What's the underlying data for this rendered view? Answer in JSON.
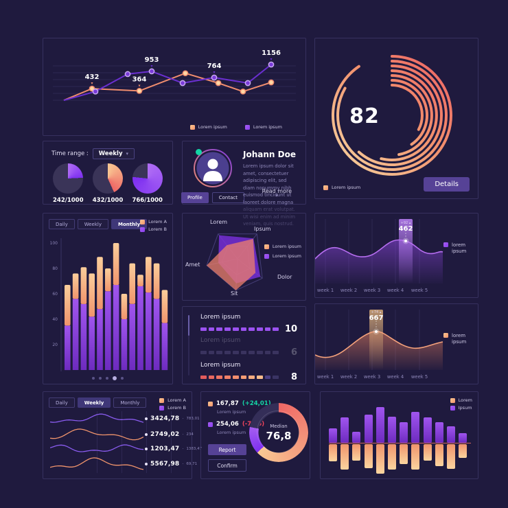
{
  "colors": {
    "background": "#1f1a3e",
    "panel_border": "#37315f",
    "grid": "#2e2853",
    "axis": "#3a3464",
    "text": "#ffffff",
    "muted": "#8d86b8",
    "soft": "#cfcae6",
    "orange": "#f4926c",
    "orange_light": "#fbc992",
    "coral": "#ee6765",
    "cream": "#f6d7a2",
    "purple": "#8a3ff0",
    "purple_light": "#a55ef0",
    "purple_deep": "#6d2bbf",
    "accent_button": "#564296",
    "outline_button": "#4a4380",
    "tab_active": "#3f3778",
    "track": "#342e58",
    "green": "#14d5a5",
    "red": "#f0435c"
  },
  "icons": {
    "chevron_down": "▾",
    "caret_up": "▴",
    "caret_down": "▾",
    "bullet": "•",
    "separator": "·"
  },
  "panels": {
    "trend": {
      "legend": [
        {
          "label": "Lorem ipsum",
          "swatch": "orange"
        },
        {
          "label": "Lorem ipsum",
          "swatch": "purple"
        }
      ]
    },
    "gauge": {
      "value": "82",
      "legend": "Lorem ipsum",
      "details": "Details"
    },
    "timerange": {
      "label": "Time range :",
      "selected": "Weekly"
    },
    "profile": {
      "name": "Johann Doe",
      "bio": "Lorem ipsum dolor sit amet, consectetuer adipiscing elit, sed diam nonummy nibh euismod tincidunt ut laoreet dolore magna",
      "bio_faded": "aliquam erat volutpat. Ut wisi enim ad minim veniam, quis nostrud.",
      "read_more": "Read more",
      "profile_btn": "Profile",
      "contact_btn": "Contact"
    },
    "stacked": {
      "tabs": [
        "Daily",
        "Weekly",
        "Monthly"
      ],
      "active_tab": 2,
      "legend": [
        {
          "label": "Lorem A",
          "swatch": "orange"
        },
        {
          "label": "Lorem B",
          "swatch": "purple"
        }
      ],
      "pagination": {
        "count": 5,
        "active": 3
      }
    },
    "radar": {
      "legend": [
        {
          "label": "Lorem ipsum",
          "swatch": "orange"
        },
        {
          "label": "Lorem ipsum",
          "swatch": "purple"
        }
      ]
    },
    "wave1": {
      "tooltip_value": "462",
      "tooltip_delta": "+92",
      "legend": "lorem ipsum"
    },
    "wave2": {
      "tooltip_value": "667",
      "tooltip_delta": "+74",
      "legend": "lorem ipsum"
    },
    "spark": {
      "tabs": [
        "Daily",
        "Weekly",
        "Monthly"
      ],
      "active_tab": 1,
      "legend": [
        {
          "label": "Lorem A",
          "swatch": "orange"
        },
        {
          "label": "Lorem B",
          "swatch": "purple"
        }
      ]
    },
    "donut": {
      "items": [
        {
          "value": "167,87",
          "delta": "(+24,01)",
          "trend": "up",
          "label": "Lorem ipsum",
          "swatch": "orange"
        },
        {
          "value": "254,06",
          "delta": "(-7,16)",
          "trend": "down",
          "label": "Lorem ipsum",
          "swatch": "purple"
        }
      ],
      "center_label": "Median",
      "center_value": "76,8",
      "report_btn": "Report",
      "confirm_btn": "Confirm"
    },
    "mirror": {
      "legend": [
        {
          "label": "Lorem",
          "swatch": "orange"
        },
        {
          "label": "Ipsum",
          "swatch": "purple"
        }
      ]
    }
  },
  "chart_data": [
    {
      "id": "trend",
      "type": "line",
      "ylim": [
        0,
        1200
      ],
      "grid": "horizontal",
      "series": [
        {
          "name": "Lorem ipsum",
          "color": "orange",
          "x": [
            30,
            71,
            140,
            207,
            255,
            291,
            332
          ],
          "values": [
            80,
            432,
            364,
            895,
            600,
            345,
            620
          ]
        },
        {
          "name": "Lorem ipsum",
          "color": "purple",
          "x": [
            30,
            76,
            123,
            158,
            203,
            249,
            298,
            332
          ],
          "values": [
            80,
            345,
            870,
            953,
            600,
            764,
            600,
            1156
          ]
        }
      ],
      "annotations": [
        {
          "series": 0,
          "point": 1,
          "text": "432"
        },
        {
          "series": 0,
          "point": 2,
          "text": "364"
        },
        {
          "series": 1,
          "point": 3,
          "text": "953"
        },
        {
          "series": 1,
          "point": 5,
          "text": "764"
        },
        {
          "series": 1,
          "point": 7,
          "text": "1156"
        }
      ]
    },
    {
      "id": "gauge",
      "type": "pie",
      "style": "concentric-arcs",
      "value": 82,
      "max": 100,
      "legend": "Lorem ipsum"
    },
    {
      "id": "fractions",
      "type": "pie",
      "items": [
        {
          "label": "242/1000",
          "value": 242,
          "total": 1000,
          "color": "purple"
        },
        {
          "label": "432/1000",
          "value": 432,
          "total": 1000,
          "color": "orange"
        },
        {
          "label": "766/1000",
          "value": 766,
          "total": 1000,
          "color": "purple"
        }
      ]
    },
    {
      "id": "stacked",
      "type": "bar",
      "stacked": true,
      "ylim": [
        0,
        100
      ],
      "y_ticks": [
        100,
        80,
        60,
        40,
        20
      ],
      "series": [
        {
          "name": "Lorem A",
          "color": "orange",
          "values": [
            32,
            20,
            29,
            34,
            41,
            18,
            33,
            20,
            32,
            9,
            28,
            28,
            26
          ]
        },
        {
          "name": "Lorem B",
          "color": "purple",
          "values": [
            35,
            56,
            52,
            42,
            48,
            62,
            67,
            40,
            52,
            66,
            61,
            56,
            37
          ]
        }
      ]
    },
    {
      "id": "radar",
      "type": "radar",
      "axes": [
        "Lorem",
        "Ipsum",
        "Dolor",
        "Sit",
        "Amet"
      ],
      "scale": [
        0,
        1
      ],
      "series": [
        {
          "name": "Lorem ipsum",
          "color": "purple",
          "values": [
            0.95,
            0.82,
            0.92,
            0.78,
            0.62
          ]
        },
        {
          "name": "Lorem ipsum",
          "color": "orange",
          "values": [
            0.55,
            0.8,
            0.72,
            1.0,
            1.0
          ]
        }
      ]
    },
    {
      "id": "weekly-wave-purple",
      "type": "area",
      "categories": [
        "week 1",
        "week 2",
        "week 3",
        "week 4",
        "week 5"
      ],
      "highlight": {
        "category": "week 4",
        "value": 462,
        "delta": "+92"
      }
    },
    {
      "id": "weekly-wave-orange",
      "type": "area",
      "categories": [
        "week 1",
        "week 2",
        "week 3",
        "week 4",
        "week 5"
      ],
      "highlight": {
        "category": "week 3",
        "value": 667,
        "delta": "+74"
      }
    },
    {
      "id": "progress",
      "type": "bar",
      "max": 10,
      "rows": [
        {
          "label": "Lorem ipsum",
          "value": 10,
          "color": "purple",
          "muted": false
        },
        {
          "label": "Lorem ipsum",
          "value": 6,
          "color": "purple",
          "muted": true
        },
        {
          "label": "Lorem ipsum",
          "value": 8,
          "color": "orange",
          "muted": false
        }
      ]
    },
    {
      "id": "donut",
      "type": "pie",
      "center_label": "Median",
      "center_value": "76,8",
      "slices": [
        {
          "name": "Lorem ipsum",
          "value": 167.87,
          "pct": 63,
          "color": "orange"
        },
        {
          "name": "Lorem ipsum",
          "value": 254.06,
          "pct": 15,
          "color": "purple"
        },
        {
          "name": "remainder",
          "pct": 22,
          "color": "track"
        }
      ]
    },
    {
      "id": "sparklines",
      "type": "line",
      "rows": [
        {
          "value": "3424,78",
          "secondary": "783,01",
          "color": "purple"
        },
        {
          "value": "2749,02",
          "secondary": "234",
          "color": "orange"
        },
        {
          "value": "1203,47",
          "secondary": "1383,47",
          "color": "purple"
        },
        {
          "value": "5567,98",
          "secondary": "69,71",
          "color": "orange"
        }
      ]
    },
    {
      "id": "mirror",
      "type": "bar",
      "mirrored": true,
      "series": [
        {
          "name": "Ipsum",
          "color": "purple",
          "values": [
            18,
            32,
            14,
            36,
            45,
            33,
            26,
            39,
            32,
            26,
            21,
            12
          ]
        },
        {
          "name": "Lorem",
          "color": "orange",
          "values": [
            22,
            32,
            21,
            30,
            37,
            32,
            25,
            32,
            21,
            28,
            31,
            17
          ]
        }
      ]
    }
  ]
}
